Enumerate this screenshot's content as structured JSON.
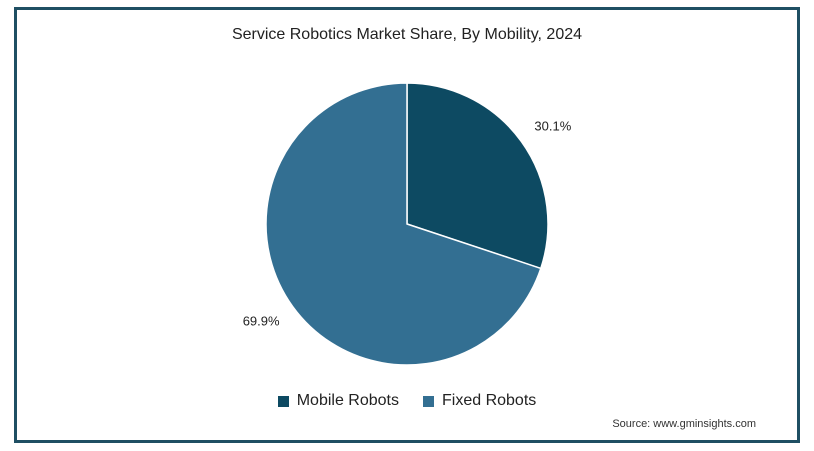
{
  "chart_data": {
    "type": "pie",
    "title": "Service Robotics Market Share, By Mobility, 2024",
    "slices": [
      {
        "name": "Mobile Robots",
        "value": 30.1,
        "label": "30.1%",
        "color": "#0d4a62"
      },
      {
        "name": "Fixed Robots",
        "value": 69.9,
        "label": "69.9%",
        "color": "#336f92"
      }
    ],
    "legend_position": "bottom",
    "source": "Source: www.gminsights.com"
  }
}
